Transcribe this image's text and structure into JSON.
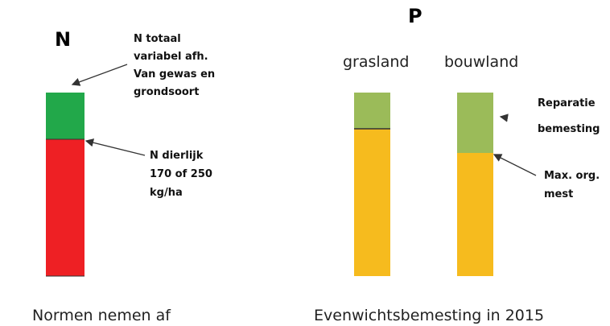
{
  "left": {
    "heading": "N",
    "note_total": [
      "N totaal",
      "variabel afh.",
      "Van gewas en",
      "grondsoort"
    ],
    "note_animal": [
      "N dierlijk",
      "170 of 250",
      "kg/ha"
    ],
    "caption": "Normen nemen af"
  },
  "right": {
    "heading": "P",
    "columns": [
      "grasland",
      "bouwland"
    ],
    "note_repair": [
      "Reparatie",
      "bemesting"
    ],
    "note_max": [
      "Max. org.",
      "mest"
    ],
    "caption": "Evenwichtsbemesting in 2015"
  }
}
